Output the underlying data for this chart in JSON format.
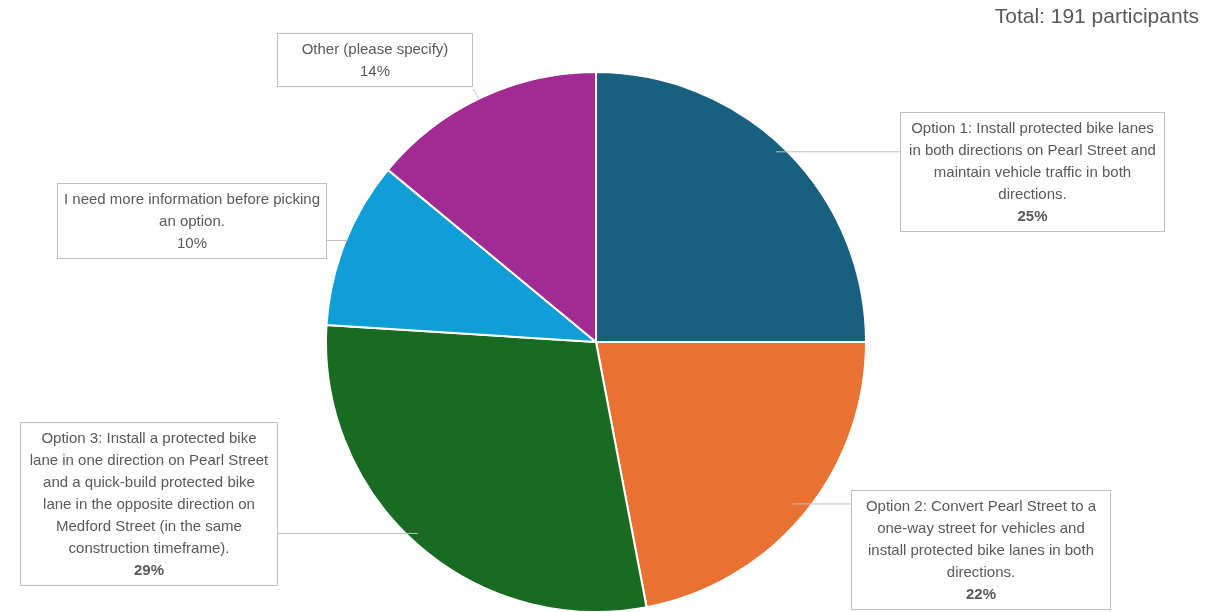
{
  "chart_data": {
    "type": "pie",
    "categories": [
      "Option 1: Install protected bike lanes in both directions on Pearl Street and maintain vehicle traffic in both directions.",
      "Option 2: Convert Pearl Street to a one-way street for vehicles and install protected bike lanes in both directions.",
      "Option 3: Install a protected bike lane in one direction on Pearl Street and a quick-build protected bike lane in the opposite direction on Medford Street (in the same construction timeframe).",
      "I need more information before picking an option.",
      "Other (please specify)"
    ],
    "values": [
      25,
      22,
      29,
      10,
      14
    ],
    "colors": [
      "#17607f",
      "#e97132",
      "#196b24",
      "#0f9ed5",
      "#a02b93"
    ],
    "value_labels": [
      "25%",
      "22%",
      "29%",
      "10%",
      "14%"
    ],
    "annotations": [
      "Total: 191 participants"
    ],
    "legend": false
  }
}
